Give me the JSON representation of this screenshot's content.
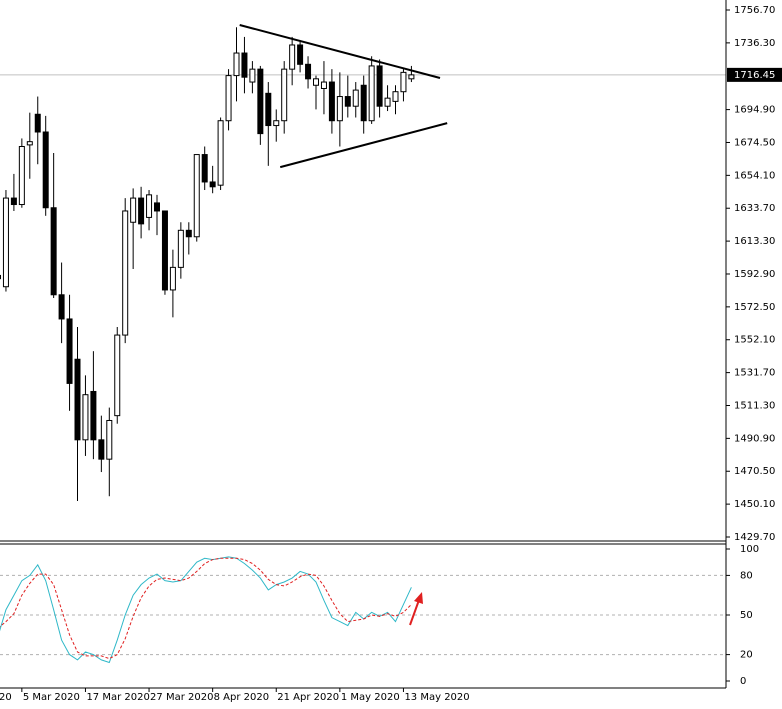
{
  "chart_data": [
    {
      "type": "candlestick",
      "categories": [
        "20",
        null,
        null,
        "5 Mar 2020",
        null,
        null,
        null,
        null,
        null,
        null,
        null,
        "17 Mar 2020",
        null,
        null,
        null,
        null,
        null,
        null,
        null,
        "27 Mar 2020",
        null,
        null,
        null,
        null,
        null,
        null,
        null,
        "8 Apr 2020",
        null,
        null,
        null,
        null,
        null,
        null,
        null,
        "21 Apr 2020",
        null,
        null,
        null,
        null,
        null,
        null,
        null,
        "1 May 2020",
        null,
        null,
        null,
        null,
        null,
        null,
        null,
        "13 May 2020",
        null
      ],
      "open": [
        1592,
        1585,
        1640,
        1636,
        1673,
        1692,
        1681,
        1634,
        1580,
        1565,
        1540,
        1490,
        1520,
        1490,
        1478,
        1505,
        1555,
        1625,
        1640,
        1628,
        1637,
        1632,
        1583,
        1597,
        1620,
        1616,
        1667,
        1650,
        1648,
        1688,
        1716,
        1730,
        1712,
        1720,
        1705,
        1685,
        1688,
        1720,
        1735,
        1723,
        1710,
        1708,
        1712,
        1688,
        1703,
        1697,
        1710,
        1688,
        1722,
        1697,
        1700,
        1706,
        1714
      ],
      "high": [
        1596,
        1645,
        1655,
        1677,
        1693,
        1703,
        1691,
        1668,
        1600,
        1580,
        1560,
        1530,
        1545,
        1505,
        1510,
        1560,
        1640,
        1646,
        1647,
        1645,
        1642,
        1632,
        1608,
        1625,
        1625,
        1667,
        1672,
        1660,
        1690,
        1720,
        1746,
        1740,
        1725,
        1722,
        1712,
        1695,
        1725,
        1740,
        1737,
        1728,
        1716,
        1725,
        1720,
        1718,
        1716,
        1712,
        1716,
        1728,
        1726,
        1710,
        1710,
        1720,
        1722
      ],
      "low": [
        1585,
        1582,
        1632,
        1634,
        1652,
        1661,
        1629,
        1578,
        1550,
        1508,
        1452,
        1480,
        1478,
        1470,
        1455,
        1500,
        1550,
        1596,
        1615,
        1620,
        1617,
        1580,
        1566,
        1590,
        1605,
        1613,
        1645,
        1643,
        1645,
        1682,
        1700,
        1705,
        1705,
        1673,
        1660,
        1675,
        1680,
        1710,
        1718,
        1708,
        1695,
        1692,
        1680,
        1672,
        1690,
        1690,
        1680,
        1686,
        1690,
        1694,
        1692,
        1700,
        1712
      ],
      "close": [
        1590,
        1640,
        1636,
        1672,
        1675,
        1681,
        1634,
        1580,
        1565,
        1525,
        1490,
        1518,
        1490,
        1478,
        1502,
        1555,
        1632,
        1640,
        1624,
        1642,
        1632,
        1583,
        1597,
        1620,
        1616,
        1667,
        1650,
        1647,
        1688,
        1716,
        1730,
        1715,
        1720,
        1680,
        1685,
        1688,
        1720,
        1735,
        1723,
        1714,
        1714,
        1712,
        1688,
        1703,
        1697,
        1707,
        1688,
        1722,
        1697,
        1702,
        1706,
        1718,
        1716.45
      ],
      "ylim": [
        1429.7,
        1756.7
      ],
      "yticks": [
        {
          "value": 1756.7,
          "label": "1756.70"
        },
        {
          "value": 1736.3,
          "label": "1736.30"
        },
        {
          "value": 1694.9,
          "label": "1694.90"
        },
        {
          "value": 1674.5,
          "label": "1674.50"
        },
        {
          "value": 1654.1,
          "label": "1654.10"
        },
        {
          "value": 1633.7,
          "label": "1633.70"
        },
        {
          "value": 1613.3,
          "label": "1613.30"
        },
        {
          "value": 1592.9,
          "label": "1592.90"
        },
        {
          "value": 1572.5,
          "label": "1572.50"
        },
        {
          "value": 1552.1,
          "label": "1552.10"
        },
        {
          "value": 1531.7,
          "label": "1531.70"
        },
        {
          "value": 1511.3,
          "label": "1511.30"
        },
        {
          "value": 1490.9,
          "label": "1490.90"
        },
        {
          "value": 1470.5,
          "label": "1470.50"
        },
        {
          "value": 1450.1,
          "label": "1450.10"
        },
        {
          "value": 1429.7,
          "label": "1429.70"
        }
      ],
      "last_price": 1716.45,
      "trendlines": [
        {
          "x": [
            30.4,
            55.6
          ],
          "y": [
            1747.4,
            1714.5
          ]
        },
        {
          "x": [
            35.5,
            56.5
          ],
          "y": [
            1659.2,
            1686.5
          ]
        }
      ]
    },
    {
      "type": "line",
      "series": [
        {
          "color": "#2fb8c8",
          "line_style": "solid",
          "values": [
            34,
            54,
            65,
            76,
            80,
            88,
            76,
            54,
            31,
            20,
            16,
            22,
            20,
            16,
            14,
            31,
            50,
            65,
            73,
            78,
            81,
            76,
            75,
            76,
            83,
            90,
            93,
            92,
            93,
            94,
            93,
            89,
            84,
            78,
            69,
            73,
            75,
            78,
            83,
            81,
            75,
            61,
            48,
            45,
            42,
            52,
            47,
            52,
            49,
            52,
            45,
            58,
            71
          ]
        },
        {
          "color": "#e02020",
          "line_style": "dashed",
          "values": [
            40,
            45,
            51,
            65,
            74,
            81,
            81,
            73,
            54,
            35,
            22,
            19,
            19,
            19,
            17,
            20,
            32,
            49,
            63,
            72,
            77,
            78,
            77,
            76,
            78,
            83,
            89,
            92,
            93,
            93,
            93,
            92,
            89,
            84,
            77,
            73,
            72,
            75,
            79,
            81,
            80,
            72,
            61,
            51,
            45,
            46,
            47,
            50,
            49,
            51,
            49,
            52,
            58
          ]
        }
      ],
      "ylim": [
        0,
        100
      ],
      "yticks": [
        100,
        80,
        50,
        20,
        0
      ],
      "grid_values": [
        80,
        50,
        20
      ]
    }
  ]
}
